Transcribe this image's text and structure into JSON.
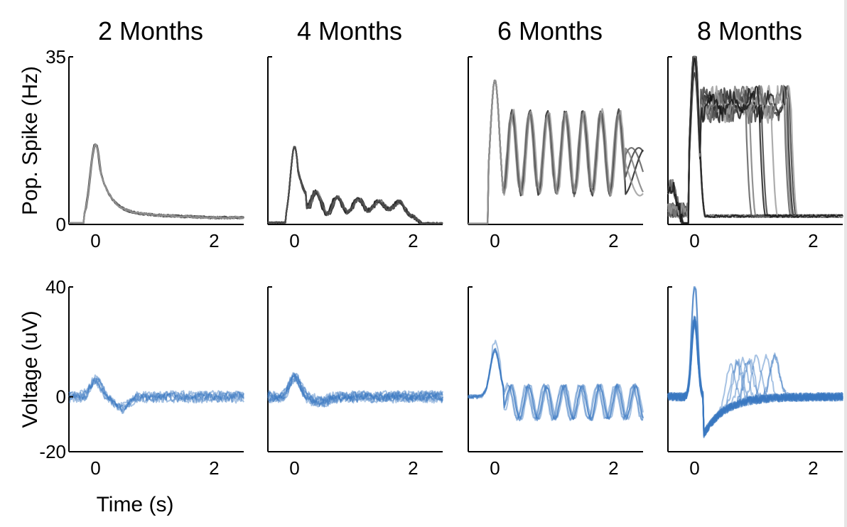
{
  "chart_data": {
    "type": "line",
    "x_range": [
      -0.45,
      2.5
    ],
    "xticks": [
      0,
      2
    ],
    "xlabel": "Time (s)",
    "rows": [
      {
        "key": "spike",
        "ylabel": "Pop. Spike (Hz)",
        "ylim": [
          0,
          35
        ],
        "yticks": [
          0,
          35
        ],
        "ytick_labels": [
          "0",
          "35"
        ]
      },
      {
        "key": "voltage",
        "ylabel": "Voltage (uV)",
        "ylim": [
          -20,
          40
        ],
        "yticks": [
          -20,
          0,
          40
        ],
        "ytick_labels": [
          "-20",
          "0",
          "40"
        ]
      }
    ],
    "panels": [
      {
        "title": "2 Months",
        "spike": {
          "n_traces": 5,
          "peak": 16.5,
          "shape": "decay",
          "decay_level": 2.5,
          "decay_end": 1.7
        },
        "voltage": {
          "n_traces": 6,
          "peak": 6,
          "shape": "dip",
          "dip": -4,
          "noise": 1.2
        }
      },
      {
        "title": "4 Months",
        "spike": {
          "n_traces": 8,
          "peak": 16,
          "shape": "damped_osc",
          "osc_amp": 3,
          "osc_period": 0.35,
          "baseline": 4
        },
        "voltage": {
          "n_traces": 8,
          "peak": 7,
          "shape": "dip",
          "dip": -2,
          "noise": 1.2
        }
      },
      {
        "title": "6 Months",
        "spike": {
          "n_traces": 5,
          "peak": 30,
          "shape": "oscillation",
          "osc_mean": 15,
          "osc_amp": 8,
          "osc_period": 0.3,
          "osc_end": 2.0
        },
        "voltage": {
          "n_traces": 6,
          "peak": 17,
          "shape": "oscillation",
          "osc_amp": 6,
          "osc_period": 0.3,
          "noise": 1
        }
      },
      {
        "title": "8 Months",
        "spike": {
          "n_traces": 16,
          "peak": 35,
          "shape": "plateau_bursts",
          "plateau": 25,
          "baseline": 1.5
        },
        "voltage": {
          "n_traces": 16,
          "peak": 40,
          "shape": "burst",
          "dip": -12,
          "noise": 1.5
        }
      }
    ],
    "spike_colors": [
      "#111111",
      "#333333",
      "#555555",
      "#777777",
      "#999999"
    ],
    "voltage_color": "#3a78c2"
  }
}
